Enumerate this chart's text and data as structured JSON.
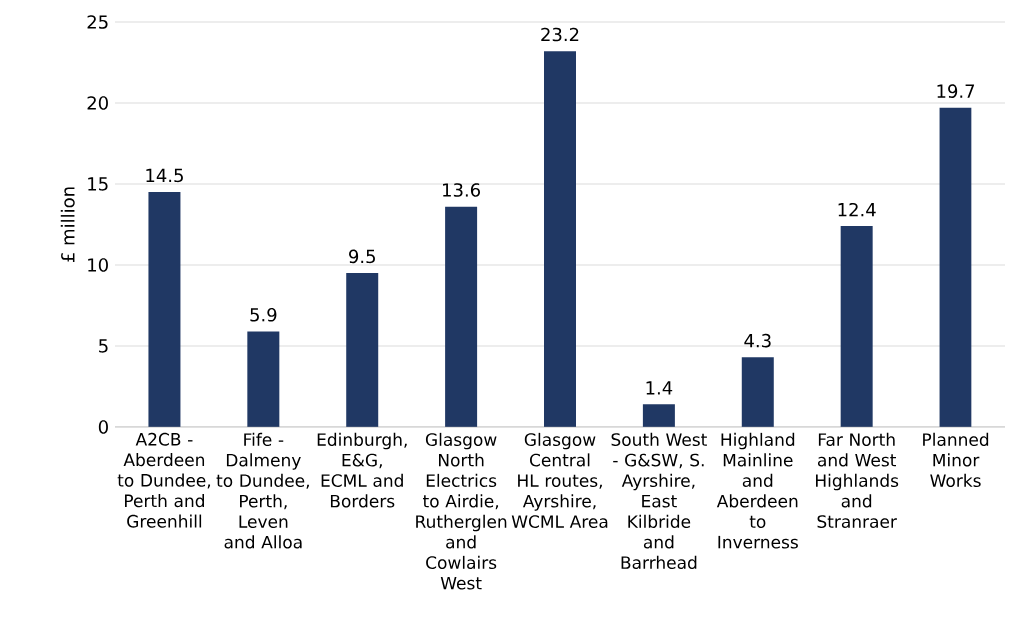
{
  "chart_data": {
    "type": "bar",
    "ylabel": "£ million",
    "categories": [
      "A2CB - Aberdeen to Dundee, Perth and Greenhill",
      "Fife - Dalmeny to Dundee, Perth, Leven and Alloa",
      "Edinburgh, E&G, ECML and Borders",
      "Glasgow North Electrics to Airdie, Rutherglen and Cowlairs West",
      "Glasgow Central HL routes, Ayrshire, WCML Area",
      "South West - G&SW, S. Ayrshire, East Kilbride and Barrhead",
      "Highland Mainline and Aberdeen to Inverness",
      "Far North and West Highlands and Stranraer",
      "Planned Minor Works"
    ],
    "values": [
      14.5,
      5.9,
      9.5,
      13.6,
      23.2,
      1.4,
      4.3,
      12.4,
      19.7
    ],
    "color": "#203864",
    "ylim": [
      0,
      25
    ],
    "yticks": [
      0,
      5,
      10,
      15,
      20,
      25
    ],
    "grid": "y",
    "data_labels": true
  }
}
